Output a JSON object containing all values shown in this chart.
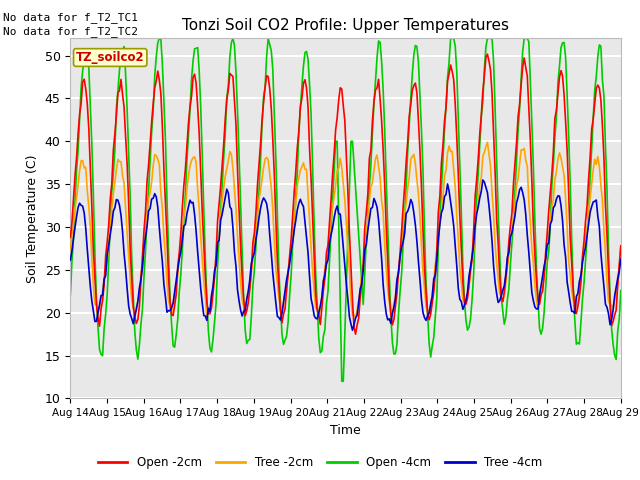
{
  "title": "Tonzi Soil CO2 Profile: Upper Temperatures",
  "xlabel": "Time",
  "ylabel": "Soil Temperature (C)",
  "ylim": [
    10,
    52
  ],
  "xlim": [
    0,
    15
  ],
  "background_color": "#e8e8e8",
  "grid_color": "white",
  "annotation_text1": "No data for f_T2_TC1",
  "annotation_text2": "No data for f_T2_TC2",
  "box_label": "TZ_soilco2",
  "x_tick_labels": [
    "Aug 14",
    "Aug 15",
    "Aug 16",
    "Aug 17",
    "Aug 18",
    "Aug 19",
    "Aug 20",
    "Aug 21",
    "Aug 22",
    "Aug 23",
    "Aug 24",
    "Aug 25",
    "Aug 26",
    "Aug 27",
    "Aug 28",
    "Aug 29"
  ],
  "legend_labels": [
    "Open -2cm",
    "Tree -2cm",
    "Open -4cm",
    "Tree -4cm"
  ],
  "legend_colors": [
    "#ff0000",
    "#ffa500",
    "#00cc00",
    "#0000cc"
  ],
  "line_width": 1.2,
  "yticks": [
    10,
    15,
    20,
    25,
    30,
    35,
    40,
    45,
    50
  ]
}
